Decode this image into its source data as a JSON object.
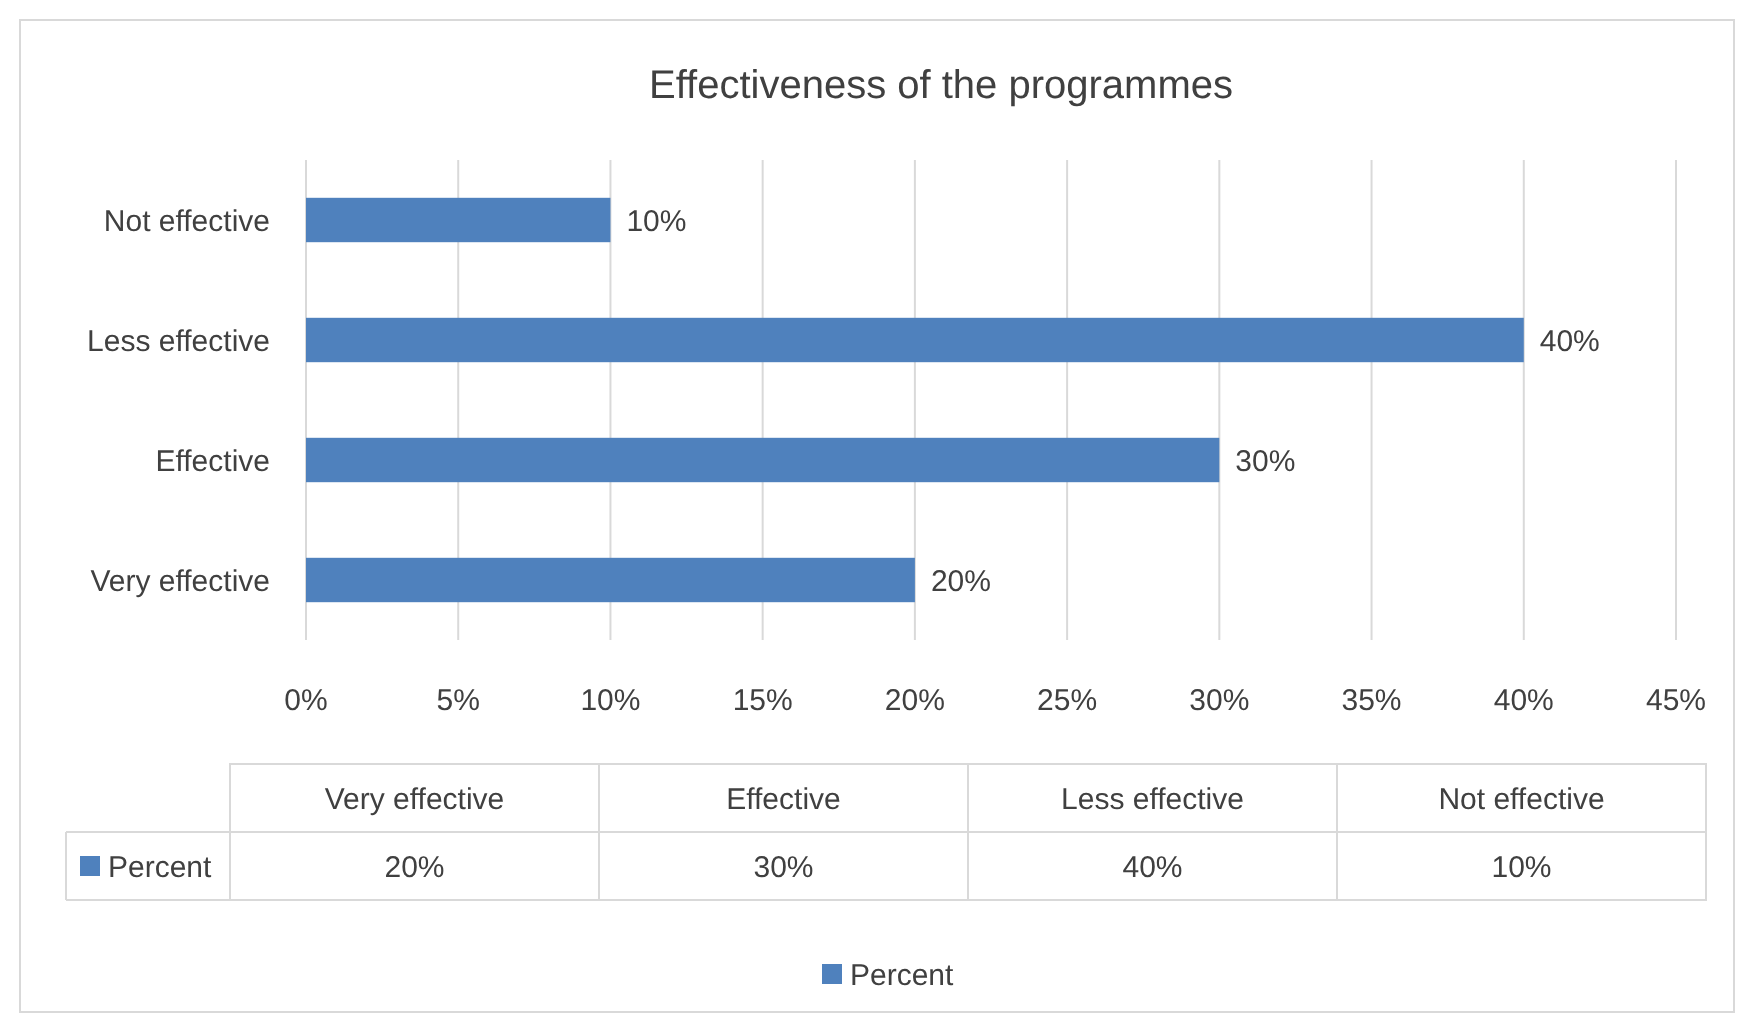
{
  "chart_data": {
    "type": "bar",
    "orientation": "horizontal",
    "title": "Effectiveness of the programmes",
    "categories": [
      "Not effective",
      "Less effective",
      "Effective",
      "Very effective"
    ],
    "series": [
      {
        "name": "Percent",
        "color": "#4f81bd",
        "values": [
          10,
          40,
          30,
          20
        ],
        "value_labels": [
          "10%",
          "40%",
          "30%",
          "20%"
        ]
      }
    ],
    "xlim": [
      0,
      45
    ],
    "xticks": [
      {
        "value": 0,
        "label": "0%"
      },
      {
        "value": 5,
        "label": "5%"
      },
      {
        "value": 10,
        "label": "10%"
      },
      {
        "value": 15,
        "label": "15%"
      },
      {
        "value": 20,
        "label": "20%"
      },
      {
        "value": 25,
        "label": "25%"
      },
      {
        "value": 30,
        "label": "30%"
      },
      {
        "value": 35,
        "label": "35%"
      },
      {
        "value": 40,
        "label": "40%"
      },
      {
        "value": 45,
        "label": "45%"
      }
    ],
    "grid": "x",
    "legend": "bottom"
  }
}
